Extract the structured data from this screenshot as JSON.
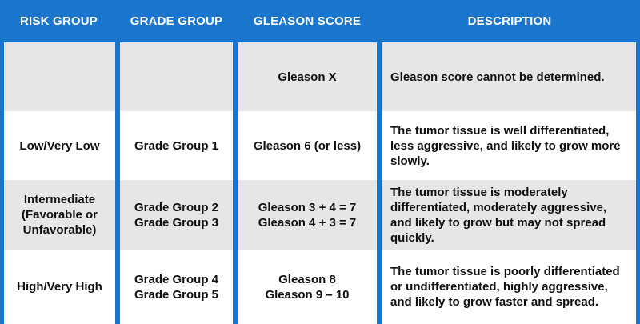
{
  "headers": [
    "RISK GROUP",
    "GRADE GROUP",
    "GLEASON SCORE",
    "DESCRIPTION"
  ],
  "rows": [
    {
      "risk_group": [
        ""
      ],
      "grade_group": [
        ""
      ],
      "gleason_score": [
        "Gleason X"
      ],
      "description": [
        "Gleason score cannot be determined."
      ]
    },
    {
      "risk_group": [
        "Low/Very Low"
      ],
      "grade_group": [
        "Grade Group 1"
      ],
      "gleason_score": [
        "Gleason 6 (or less)"
      ],
      "description": [
        "The tumor tissue is well differentiated,",
        "less aggressive, and likely to grow more",
        "slowly."
      ]
    },
    {
      "risk_group": [
        "Intermediate",
        "(Favorable or",
        "Unfavorable)"
      ],
      "grade_group": [
        "Grade Group 2",
        "Grade Group 3"
      ],
      "gleason_score": [
        "Gleason 3 + 4 = 7",
        "Gleason 4 + 3 = 7"
      ],
      "description": [
        "The tumor tissue is moderately",
        "differentiated, moderately aggressive,",
        "and likely to grow but may not spread",
        "quickly."
      ]
    },
    {
      "risk_group": [
        "High/Very High"
      ],
      "grade_group": [
        "Grade Group 4",
        "Grade Group 5"
      ],
      "gleason_score": [
        "Gleason 8",
        "Gleason 9 – 10"
      ],
      "description": [
        "The tumor tissue is poorly differentiated",
        "or undifferentiated, highly aggressive,",
        "and likely to grow faster and spread."
      ]
    }
  ],
  "colors": {
    "header_bg": "#1a76cd",
    "row_gray": "#e6e6e8",
    "row_white": "#ffffff"
  }
}
